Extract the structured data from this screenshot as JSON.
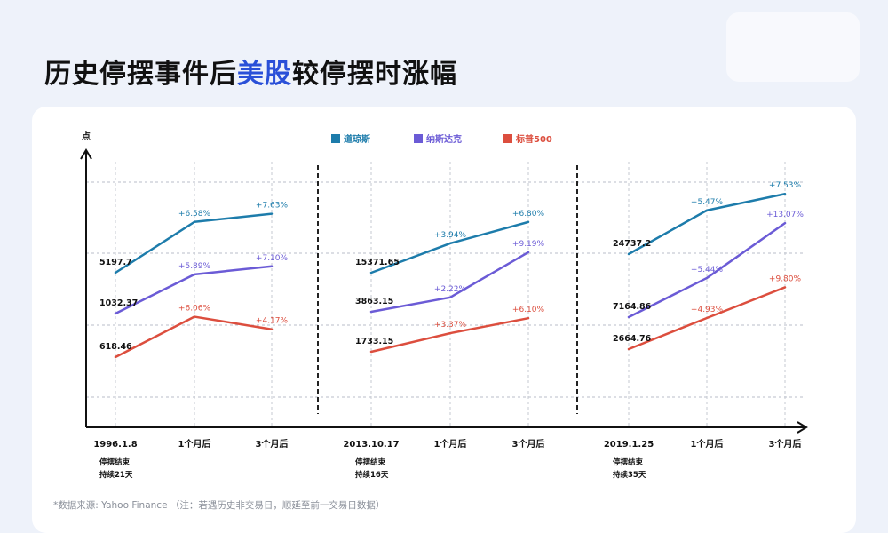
{
  "title": {
    "prefix": "历史停摆事件后",
    "highlight": "美股",
    "suffix": "较停摆时涨幅"
  },
  "footnote": "*数据来源: Yahoo Finance （注：若遇历史非交易日，顺延至前一交易日数据）",
  "colors": {
    "dow": "#1d7cab",
    "nasdaq": "#6b5bd6",
    "sp500": "#dc4e3e",
    "title_highlight": "#2a50d8"
  },
  "chart_data": {
    "type": "line",
    "ylabel": "点",
    "legend_position": "top-center",
    "legend": [
      {
        "key": "dow",
        "name": "道琼斯"
      },
      {
        "key": "nasdaq",
        "name": "纳斯达克"
      },
      {
        "key": "sp500",
        "name": "标普500"
      }
    ],
    "grid": true,
    "panels": [
      {
        "categories": [
          "1996.1.8",
          "1个月后",
          "3个月后"
        ],
        "note_line1": "停摆结束",
        "note_line2": "持续21天",
        "series": [
          {
            "key": "dow",
            "start_value": "5197.7",
            "changes": [
              "+6.58%",
              "+7.63%"
            ],
            "pct": [
              0,
              6.58,
              7.63
            ]
          },
          {
            "key": "nasdaq",
            "start_value": "1032.37",
            "changes": [
              "+5.89%",
              "+7.10%"
            ],
            "pct": [
              0,
              5.89,
              7.1
            ]
          },
          {
            "key": "sp500",
            "start_value": "618.46",
            "changes": [
              "+6.06%",
              "+4.17%"
            ],
            "pct": [
              0,
              6.06,
              4.17
            ]
          }
        ]
      },
      {
        "categories": [
          "2013.10.17",
          "1个月后",
          "3个月后"
        ],
        "note_line1": "停摆结束",
        "note_line2": "持续16天",
        "series": [
          {
            "key": "dow",
            "start_value": "15371.65",
            "changes": [
              "+3.94%",
              "+6.80%"
            ],
            "pct": [
              0,
              3.94,
              6.8
            ]
          },
          {
            "key": "nasdaq",
            "start_value": "3863.15",
            "changes": [
              "+2.22%",
              "+9.19%"
            ],
            "pct": [
              0,
              2.22,
              9.19
            ]
          },
          {
            "key": "sp500",
            "start_value": "1733.15",
            "changes": [
              "+3.37%",
              "+6.10%"
            ],
            "pct": [
              0,
              3.37,
              6.1
            ]
          }
        ]
      },
      {
        "categories": [
          "2019.1.25",
          "1个月后",
          "3个月后"
        ],
        "note_line1": "停摆结束",
        "note_line2": "持续35天",
        "series": [
          {
            "key": "dow",
            "start_value": "24737.2",
            "changes": [
              "+5.47%",
              "+7.53%"
            ],
            "pct": [
              0,
              5.47,
              7.53
            ]
          },
          {
            "key": "nasdaq",
            "start_value": "7164.86",
            "changes": [
              "+5.44%",
              "+13.07%"
            ],
            "pct": [
              0,
              5.44,
              13.07
            ]
          },
          {
            "key": "sp500",
            "start_value": "2664.76",
            "changes": [
              "+4.93%",
              "+9.80%"
            ],
            "pct": [
              0,
              4.93,
              9.8
            ]
          }
        ]
      }
    ]
  }
}
